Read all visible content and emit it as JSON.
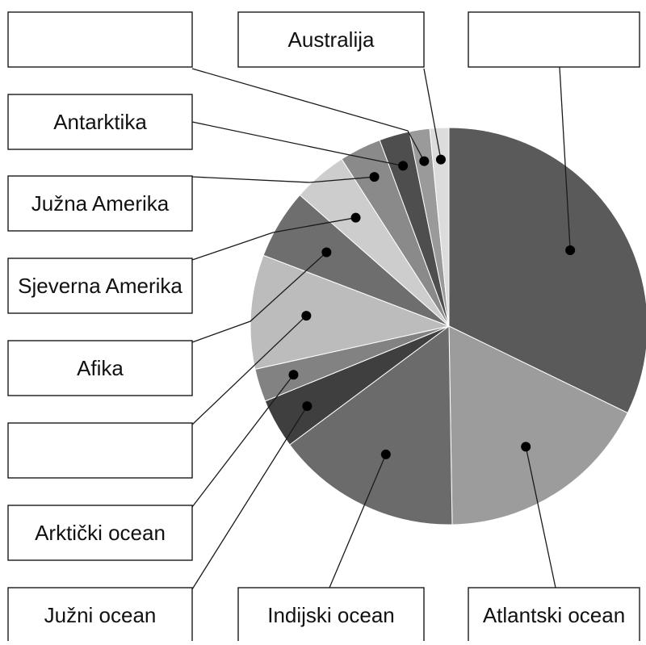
{
  "chart_data": {
    "type": "pie",
    "title": "",
    "start_angle_deg": 0,
    "direction": "clockwise",
    "slices": [
      {
        "label": "",
        "value": 31.2,
        "color": "#5a5a5a"
      },
      {
        "label": "Atlantski ocean",
        "value": 17.0,
        "color": "#9c9c9c"
      },
      {
        "label": "Indijski ocean",
        "value": 14.6,
        "color": "#6b6b6b"
      },
      {
        "label": "Južni ocean",
        "value": 3.9,
        "color": "#3f3f3f"
      },
      {
        "label": "Arktički ocean",
        "value": 2.6,
        "color": "#828282"
      },
      {
        "label": "",
        "value": 9.0,
        "color": "#bcbcbc"
      },
      {
        "label": "Afika",
        "value": 5.5,
        "color": "#6e6e6e"
      },
      {
        "label": "Sjeverna Amerika",
        "value": 4.3,
        "color": "#cdcdcd"
      },
      {
        "label": "Južna Amerika",
        "value": 3.3,
        "color": "#8a8a8a"
      },
      {
        "label": "Antarktika",
        "value": 2.4,
        "color": "#4e4e4e"
      },
      {
        "label": "",
        "value": 1.6,
        "color": "#9a9a9a"
      },
      {
        "label": "Australija",
        "value": 1.5,
        "color": "#dcdcdc"
      }
    ]
  }
}
